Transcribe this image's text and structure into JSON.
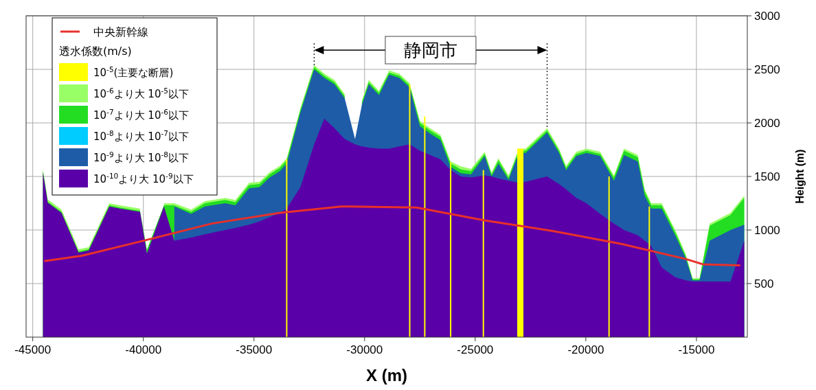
{
  "chart_data": {
    "type": "area",
    "xlabel": "X (m)",
    "ylabel": "Height (m)",
    "legend_title": "透水係数(m/s)",
    "legend": "top left",
    "grid": true,
    "xlim": [
      -45300,
      -12700
    ],
    "ylim": [
      0,
      3000
    ],
    "xticks": [
      -45000,
      -40000,
      -35000,
      -30000,
      -25000,
      -20000,
      -15000
    ],
    "yticks": [
      500,
      1000,
      1500,
      2000,
      2500,
      3000
    ],
    "x": [
      -44540,
      -44320,
      -43700,
      -42930,
      -42470,
      -41540,
      -41060,
      -40150,
      -39840,
      -39070,
      -38600,
      -37840,
      -37220,
      -36300,
      -35840,
      -35220,
      -34750,
      -34290,
      -33830,
      -33520,
      -32900,
      -32280,
      -31820,
      -31360,
      -30900,
      -30430,
      -30120,
      -29810,
      -29350,
      -28890,
      -28430,
      -27960,
      -27500,
      -27040,
      -26570,
      -26110,
      -25650,
      -25190,
      -24570,
      -24260,
      -23950,
      -23490,
      -23030,
      -22720,
      -21750,
      -21210,
      -20890,
      -20430,
      -19970,
      -19350,
      -18730,
      -18270,
      -17650,
      -17340,
      -17040,
      -16570,
      -15960,
      -15490,
      -15170,
      -14860,
      -14400,
      -13460,
      -12840
    ],
    "ref_lines": [
      {
        "axis": "x",
        "value": -32280,
        "color": "#000000",
        "line_style": "dotted"
      },
      {
        "axis": "x",
        "value": -21750,
        "color": "#000000",
        "line_style": "dotted"
      }
    ],
    "annotations": [
      "静岡市"
    ],
    "series": [
      {
        "name": "中央新幹線",
        "type": "line",
        "color": "#e8302a",
        "x": [
          -44480,
          -42780,
          -40000,
          -36910,
          -33830,
          -31050,
          -27650,
          -24570,
          -21480,
          -18390,
          -15490,
          -14710,
          -13020
        ],
        "values": [
          710,
          760,
          900,
          1060,
          1160,
          1220,
          1210,
          1090,
          990,
          870,
          730,
          680,
          670
        ]
      },
      {
        "name": "10$^{-5}$(主要な断層)",
        "type": "bar",
        "color": "#ffff00",
        "x": [
          -33520,
          -27960,
          -27280,
          -26110,
          -24630,
          -18950,
          -17130
        ],
        "values": [
          1660,
          2360,
          2060,
          1630,
          1560,
          1500,
          1220
        ]
      },
      {
        "name": "10$^{-6}$より大 10$^{-5}$以下",
        "color": "#99ff66",
        "values": [
          1570,
          1285,
          1190,
          820,
          840,
          1250,
          1230,
          1200,
          null,
          1250,
          1250,
          1190,
          1270,
          1300,
          1280,
          1440,
          1450,
          1540,
          1600,
          1670,
          2140,
          2540,
          2460,
          2400,
          2270,
          null,
          2210,
          2400,
          2300,
          2490,
          2460,
          2370,
          2020,
          1950,
          1890,
          1640,
          1595,
          1570,
          1730,
          1540,
          1670,
          1510,
          1760,
          1760,
          1950,
          1760,
          1600,
          1730,
          1760,
          1730,
          1510,
          1760,
          1700,
          1380,
          1250,
          1250,
          1000,
          780,
          550,
          550,
          1060,
          1160,
          1320
        ]
      },
      {
        "name": "10$^{-7}$より大 10$^{-6}$以下",
        "color": "#22dd22",
        "values": [
          1550,
          1265,
          1170,
          800,
          820,
          1230,
          1210,
          1180,
          815,
          1230,
          1230,
          1170,
          1250,
          1280,
          1260,
          1420,
          1430,
          1520,
          1580,
          1650,
          2120,
          2520,
          2440,
          2380,
          2250,
          null,
          2190,
          2380,
          2280,
          2470,
          2440,
          2350,
          2000,
          1930,
          1870,
          1620,
          1565,
          1550,
          1710,
          1520,
          1650,
          1490,
          1740,
          1740,
          1930,
          1740,
          1580,
          1710,
          1740,
          1710,
          1490,
          1740,
          1680,
          1360,
          1230,
          1230,
          980,
          760,
          540,
          540,
          1040,
          1140,
          1300
        ]
      },
      {
        "name": "10$^{-8}$より大 10$^{-7}$以下",
        "color": "#00ccff",
        "values": [
          null,
          null,
          null,
          null,
          null,
          null,
          null,
          null,
          null,
          null,
          null,
          null,
          null,
          null,
          null,
          null,
          null,
          null,
          null,
          null,
          null,
          null,
          null,
          null,
          null,
          null,
          null,
          null,
          null,
          null,
          null,
          null,
          null,
          null,
          null,
          null,
          null,
          null,
          null,
          null,
          null,
          null,
          null,
          null,
          null,
          null,
          null,
          null,
          null,
          null,
          null,
          null,
          null,
          null,
          null,
          null,
          null,
          null,
          null,
          null,
          null,
          null,
          null
        ]
      },
      {
        "name": "10$^{-9}$より大 10$^{-8}$以下",
        "color": "#1e5ca8",
        "values": [
          null,
          null,
          null,
          null,
          null,
          null,
          null,
          null,
          null,
          null,
          1220,
          1150,
          1220,
          1250,
          1230,
          1390,
          1400,
          1490,
          1550,
          1620,
          2100,
          2500,
          2420,
          2360,
          2230,
          1850,
          2170,
          2360,
          2260,
          2450,
          2420,
          2330,
          1970,
          1900,
          1840,
          1590,
          1530,
          1520,
          1690,
          1500,
          1620,
          1470,
          1720,
          1720,
          1910,
          1720,
          1560,
          1690,
          1720,
          1690,
          1460,
          1700,
          1640,
          1320,
          1200,
          1200,
          950,
          740,
          530,
          530,
          900,
          1000,
          1050
        ]
      },
      {
        "name": "10$^{-10}$より大 10$^{-9}$以下",
        "color": "#5a00a8",
        "values": [
          1540,
          1255,
          1160,
          790,
          810,
          1220,
          1200,
          1170,
          780,
          1220,
          900,
          930,
          960,
          1000,
          1020,
          1050,
          1080,
          1120,
          1160,
          1200,
          1400,
          1800,
          2040,
          1950,
          1850,
          1800,
          1780,
          1770,
          1760,
          1760,
          1780,
          1800,
          1740,
          1700,
          1660,
          1560,
          1500,
          1490,
          1510,
          1500,
          1480,
          1460,
          1440,
          1450,
          1500,
          1430,
          1380,
          1300,
          1250,
          1150,
          1060,
          1000,
          950,
          900,
          850,
          650,
          560,
          530,
          520,
          520,
          520,
          520,
          900
        ]
      },
      {
        "type": "area",
        "color": "#ffff00",
        "x": [
          -23100,
          -22820
        ],
        "values": [
          1760,
          1760
        ]
      }
    ]
  }
}
